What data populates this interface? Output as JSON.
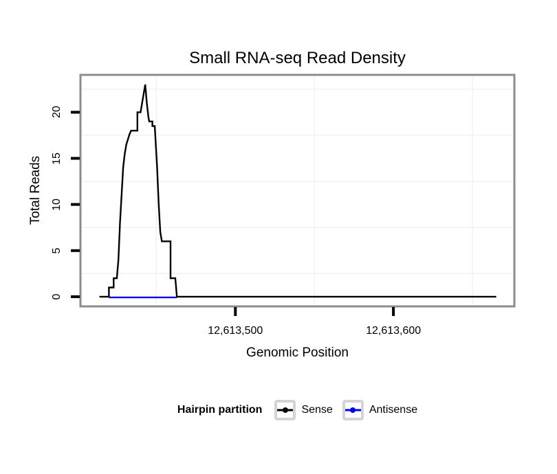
{
  "title": "Small RNA-seq Read Density",
  "axes": {
    "x": {
      "label": "Genomic Position",
      "ticks": [
        {
          "value": 12613500,
          "label": "12,613,500"
        },
        {
          "value": 12613600,
          "label": "12,613,600"
        }
      ],
      "minor_gridlines": [
        12613450,
        12613550,
        12613650
      ]
    },
    "y": {
      "label": "Total Reads",
      "ticks": [
        {
          "value": 0,
          "label": "0"
        },
        {
          "value": 5,
          "label": "5"
        },
        {
          "value": 10,
          "label": "10"
        },
        {
          "value": 15,
          "label": "15"
        },
        {
          "value": 20,
          "label": "20"
        }
      ],
      "minor_gridlines": [
        2.5,
        7.5,
        12.5,
        17.5,
        22.5
      ]
    }
  },
  "chart_data": {
    "type": "line",
    "title": "Small RNA-seq Read Density",
    "xlabel": "Genomic Position",
    "ylabel": "Total Reads",
    "xlim": [
      12613402,
      12613676.5
    ],
    "ylim": [
      -1.05,
      24.05
    ],
    "grid": "minor-only",
    "legend_position": "bottom",
    "series": [
      {
        "name": "Sense",
        "color": "#000000",
        "points": [
          [
            12613414,
            0
          ],
          [
            12613420,
            0
          ],
          [
            12613420,
            1
          ],
          [
            12613423,
            1
          ],
          [
            12613423,
            2
          ],
          [
            12613425,
            2
          ],
          [
            12613426,
            4
          ],
          [
            12613427,
            8
          ],
          [
            12613428,
            11
          ],
          [
            12613429,
            14
          ],
          [
            12613430,
            15.5
          ],
          [
            12613431,
            16.5
          ],
          [
            12613433,
            17.6
          ],
          [
            12613434,
            18
          ],
          [
            12613438,
            18
          ],
          [
            12613438,
            20
          ],
          [
            12613440,
            20
          ],
          [
            12613441.5,
            21.5
          ],
          [
            12613443,
            23
          ],
          [
            12613444,
            21
          ],
          [
            12613445,
            19.5
          ],
          [
            12613445.5,
            19
          ],
          [
            12613447.5,
            19
          ],
          [
            12613447.5,
            18.5
          ],
          [
            12613449,
            18.5
          ],
          [
            12613449.5,
            17
          ],
          [
            12613450.5,
            14
          ],
          [
            12613451.5,
            10
          ],
          [
            12613452.5,
            7
          ],
          [
            12613453.5,
            6
          ],
          [
            12613459,
            6
          ],
          [
            12613459,
            2
          ],
          [
            12613462,
            2
          ],
          [
            12613462.5,
            1
          ],
          [
            12613463,
            0
          ],
          [
            12613665,
            0
          ]
        ]
      },
      {
        "name": "Antisense",
        "color": "#0000ee",
        "points": [
          [
            12613420,
            0
          ],
          [
            12613463,
            0
          ]
        ]
      }
    ]
  },
  "legend": {
    "title": "Hairpin partition",
    "entries": [
      {
        "label": "Sense",
        "color": "#000000"
      },
      {
        "label": "Antisense",
        "color": "#0000ee"
      }
    ]
  },
  "colors": {
    "background": "#ffffff",
    "panel_border": "#8c8c8c",
    "gridline": "#f2f2f2",
    "tick": "#000000",
    "text": "#000000",
    "legend_key_border": "#d4d4d4"
  }
}
